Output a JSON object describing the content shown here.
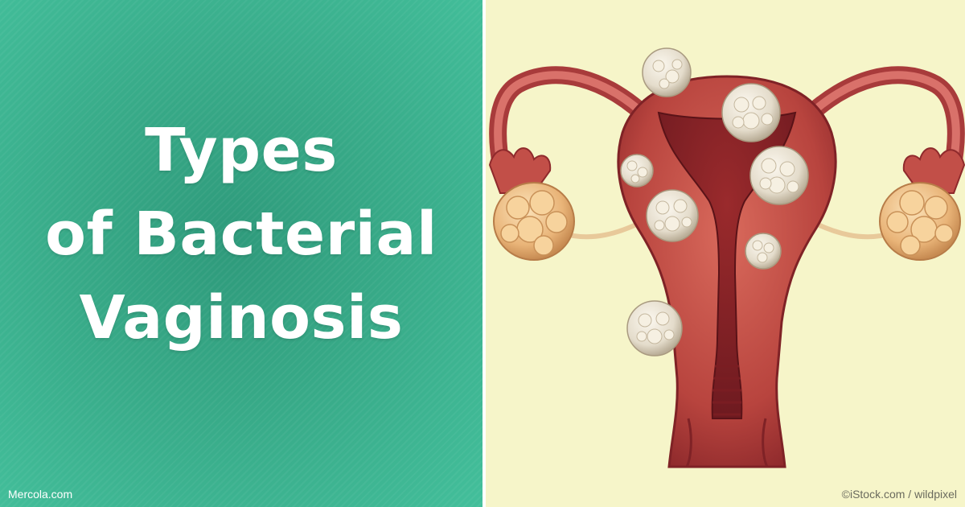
{
  "headline": {
    "line1": "Types",
    "line2": "of Bacterial",
    "line3": "Vaginosis"
  },
  "credits": {
    "left": "Mercola.com",
    "right": "©iStock.com / wildpixel"
  },
  "colors": {
    "panel_green": "#3aae8c",
    "panel_cream": "#f6f5c9",
    "tissue_red": "#b83a3a",
    "fibroid": "#e8e2d4",
    "ovary": "#eab57a"
  },
  "icons": [
    "uterus-illustration"
  ]
}
